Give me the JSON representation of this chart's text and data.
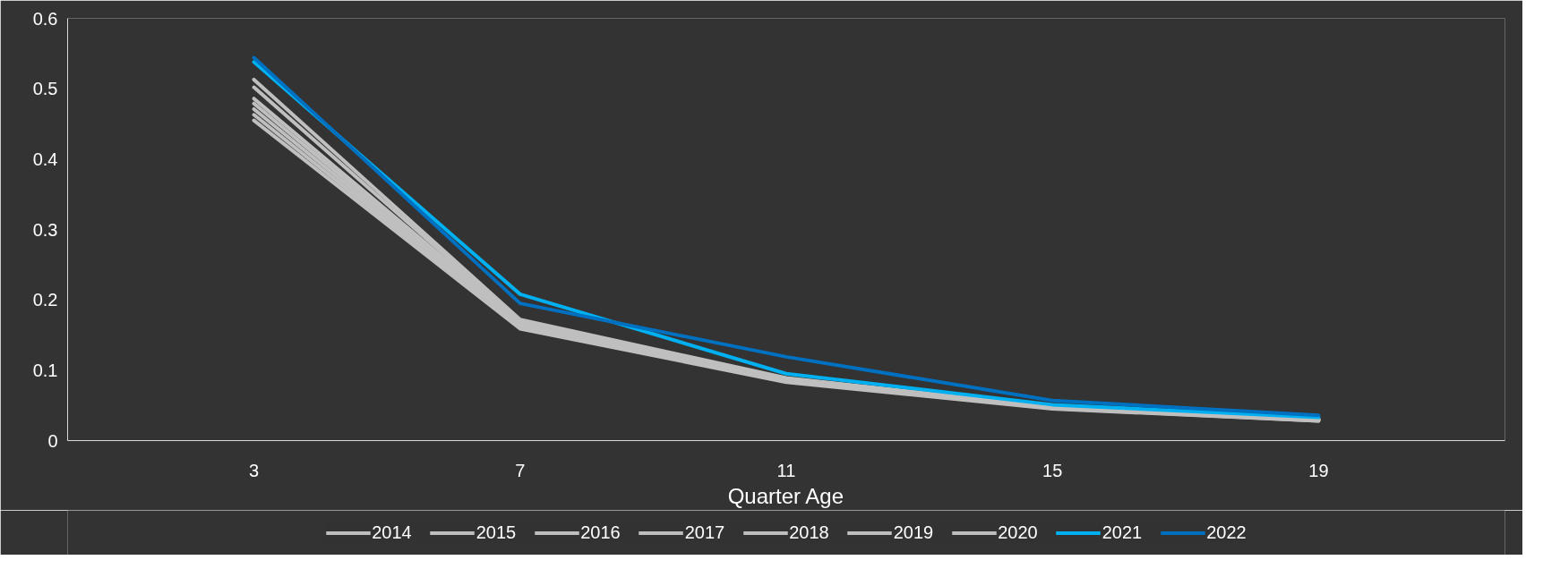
{
  "chart_data": {
    "type": "line",
    "xlabel": "Quarter Age",
    "categories": [
      "3",
      "7",
      "11",
      "15",
      "19"
    ],
    "series": [
      {
        "name": "2014",
        "color": "#bfbfbf",
        "values": [
          0.455,
          0.159,
          0.083,
          0.045,
          0.028
        ]
      },
      {
        "name": "2015",
        "color": "#bfbfbf",
        "values": [
          0.463,
          0.161,
          0.084,
          0.046,
          0.028
        ]
      },
      {
        "name": "2016",
        "color": "#bfbfbf",
        "values": [
          0.471,
          0.163,
          0.085,
          0.046,
          0.029
        ]
      },
      {
        "name": "2017",
        "color": "#bfbfbf",
        "values": [
          0.479,
          0.165,
          0.086,
          0.047,
          0.029
        ]
      },
      {
        "name": "2018",
        "color": "#bfbfbf",
        "values": [
          0.486,
          0.168,
          0.087,
          0.047,
          0.03
        ]
      },
      {
        "name": "2019",
        "color": "#bfbfbf",
        "values": [
          0.502,
          0.17,
          0.088,
          0.048,
          0.03
        ]
      },
      {
        "name": "2020",
        "color": "#bfbfbf",
        "values": [
          0.513,
          0.172,
          0.089,
          0.048,
          0.031
        ]
      },
      {
        "name": "2021",
        "color": "#00b0f0",
        "values": [
          0.538,
          0.208,
          0.095,
          0.051,
          0.033
        ]
      },
      {
        "name": "2022",
        "color": "#0070c0",
        "values": [
          0.544,
          0.195,
          0.119,
          0.057,
          0.036
        ]
      }
    ],
    "ylim": [
      0,
      0.6
    ],
    "yticks": [
      0,
      0.1,
      0.2,
      0.3,
      0.4,
      0.5,
      0.6
    ],
    "grid": false,
    "legend": "bottom",
    "marker": "none",
    "line_style": "solid"
  }
}
